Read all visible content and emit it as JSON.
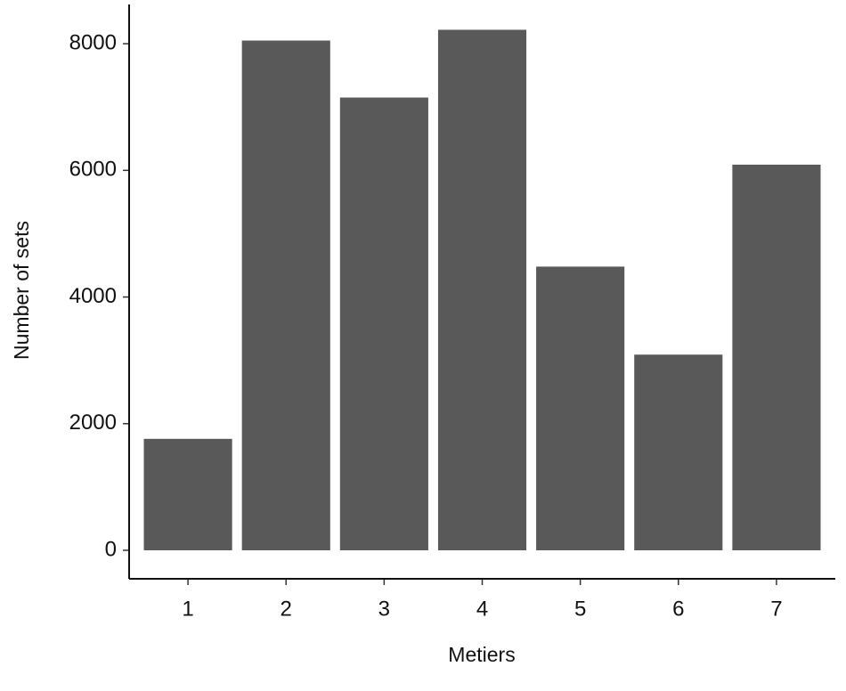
{
  "chart_data": {
    "type": "bar",
    "x_label": "Metiers",
    "y_label": "Number of sets",
    "categories": [
      "1",
      "2",
      "3",
      "4",
      "5",
      "6",
      "7"
    ],
    "values": [
      1760,
      8050,
      7150,
      8220,
      4480,
      3090,
      6090
    ],
    "color": "#595959",
    "ylim": [
      -450,
      8620
    ],
    "yticks": [
      0,
      2000,
      4000,
      6000,
      8000
    ],
    "grid": false
  }
}
